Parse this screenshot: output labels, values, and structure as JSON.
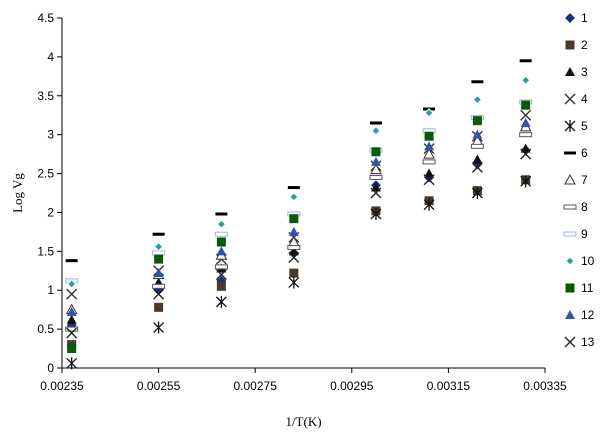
{
  "chart_data": {
    "type": "scatter",
    "xlabel": "1/T(K)",
    "ylabel": "Log Vg",
    "xlim": [
      0.00235,
      0.00335
    ],
    "ylim": [
      0,
      4.5
    ],
    "x_ticks": [
      "0.00235",
      "0.00255",
      "0.00275",
      "0.00295",
      "0.00315",
      "0.00335"
    ],
    "y_ticks": [
      "0",
      "0.5",
      "1",
      "1.5",
      "2",
      "2.5",
      "3",
      "3.5",
      "4",
      "4.5"
    ],
    "grid": false,
    "legend_position": "right",
    "x": [
      0.00237,
      0.00255,
      0.00268,
      0.00283,
      0.003,
      0.00311,
      0.00321,
      0.00331
    ],
    "series": [
      {
        "name": "1",
        "marker": "diamond",
        "color": "#1f2f86",
        "values": [
          0.55,
          1.0,
          1.12,
          1.48,
          2.35,
          2.45,
          2.62,
          2.8
        ]
      },
      {
        "name": "2",
        "marker": "square",
        "color": "#4a3a2a",
        "values": [
          0.3,
          0.78,
          1.05,
          1.22,
          2.02,
          2.15,
          2.28,
          2.42
        ]
      },
      {
        "name": "3",
        "marker": "triangle",
        "color": "#111111",
        "values": [
          0.62,
          1.1,
          1.28,
          1.5,
          2.32,
          2.5,
          2.68,
          2.82
        ]
      },
      {
        "name": "4",
        "marker": "x",
        "color": "#333333",
        "values": [
          0.95,
          1.25,
          1.4,
          1.68,
          2.6,
          2.82,
          2.98,
          3.25
        ]
      },
      {
        "name": "5",
        "marker": "star",
        "color": "#111111",
        "values": [
          0.06,
          0.52,
          0.85,
          1.1,
          1.98,
          2.1,
          2.25,
          2.4
        ]
      },
      {
        "name": "6",
        "marker": "dash",
        "color": "#000000",
        "values": [
          1.38,
          1.72,
          1.98,
          2.32,
          3.15,
          3.33,
          3.68,
          3.95
        ]
      },
      {
        "name": "7",
        "marker": "triangle-open",
        "color": "#333333",
        "values": [
          0.75,
          1.2,
          1.45,
          1.62,
          2.55,
          2.75,
          2.92,
          3.1
        ]
      },
      {
        "name": "8",
        "marker": "dash-open",
        "color": "#555555",
        "values": [
          0.5,
          1.05,
          1.3,
          1.55,
          2.45,
          2.65,
          2.85,
          3.0
        ]
      },
      {
        "name": "9",
        "marker": "dash-light",
        "color": "#9fb6d6",
        "values": [
          1.12,
          1.48,
          1.72,
          1.98,
          2.8,
          3.05,
          3.22,
          3.42
        ]
      },
      {
        "name": "10",
        "marker": "diamond-small",
        "color": "#2a9d9d",
        "values": [
          1.08,
          1.56,
          1.85,
          2.2,
          3.05,
          3.28,
          3.45,
          3.7
        ]
      },
      {
        "name": "11",
        "marker": "square",
        "color": "#0a5a0a",
        "values": [
          0.25,
          1.4,
          1.62,
          1.92,
          2.78,
          2.98,
          3.18,
          3.38
        ]
      },
      {
        "name": "12",
        "marker": "triangle",
        "color": "#2f56a8",
        "values": [
          0.72,
          1.22,
          1.5,
          1.75,
          2.65,
          2.85,
          3.0,
          3.15
        ]
      },
      {
        "name": "13",
        "marker": "x",
        "color": "#222222",
        "values": [
          0.45,
          0.95,
          1.2,
          1.42,
          2.25,
          2.42,
          2.58,
          2.75
        ]
      }
    ]
  }
}
